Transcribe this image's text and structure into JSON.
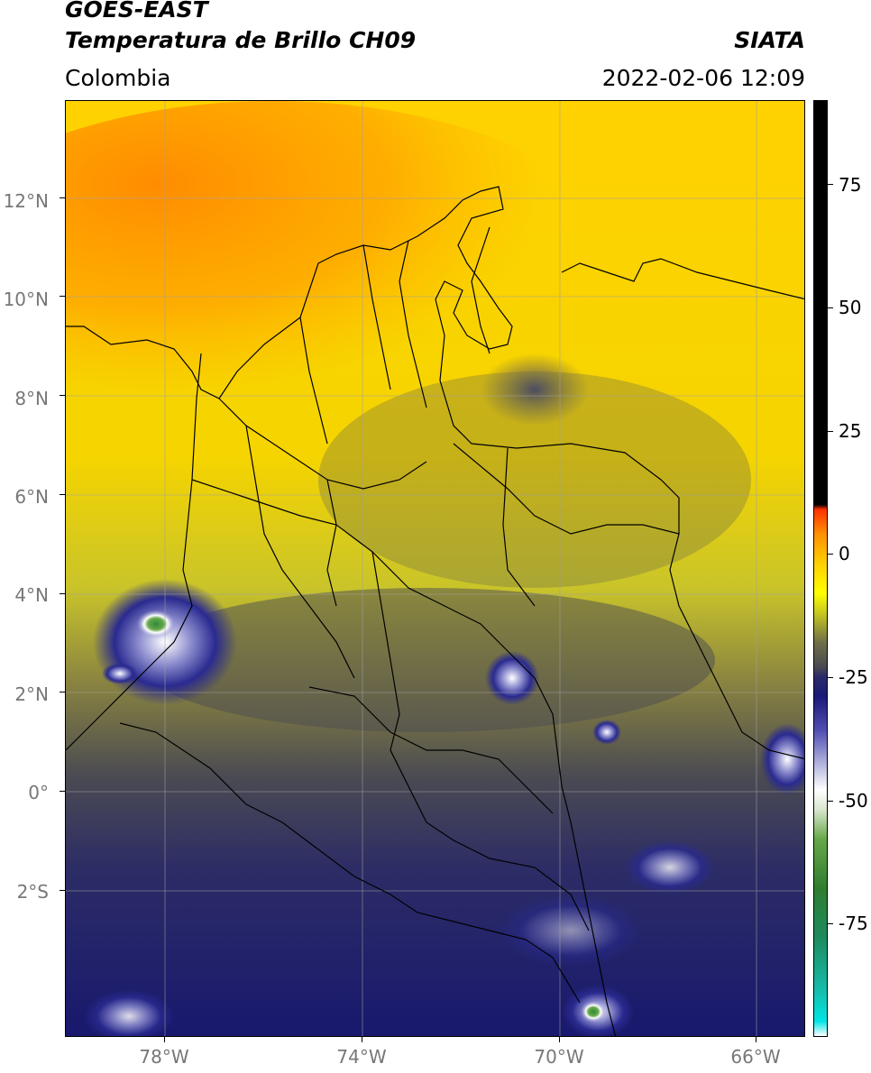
{
  "header": {
    "satellite": "GOES-EAST",
    "product": "Temperatura de Brillo CH09",
    "organization": "SIATA",
    "region": "Colombia",
    "timestamp": "2022-02-06 12:09"
  },
  "map": {
    "lat_range": [
      -5.2,
      14
    ],
    "lon_range": [
      -80,
      -65
    ],
    "lat_ticks": [
      "12°N",
      "10°N",
      "8°N",
      "6°N",
      "4°N",
      "2°N",
      "0°",
      "2°S"
    ],
    "lon_ticks": [
      "78°W",
      "74°W",
      "70°W",
      "66°W"
    ],
    "gridlines": true
  },
  "colorbar": {
    "range": [
      -100,
      90
    ],
    "ticks": [
      "75",
      "50",
      "25",
      "0",
      "-25",
      "-50",
      "-75"
    ],
    "stops": [
      {
        "v": -100,
        "c": "#ffffff"
      },
      {
        "v": -97,
        "c": "#00e5e5"
      },
      {
        "v": -90,
        "c": "#17b9a6"
      },
      {
        "v": -80,
        "c": "#1f8a5f"
      },
      {
        "v": -70,
        "c": "#2f7d2f"
      },
      {
        "v": -60,
        "c": "#66a84a"
      },
      {
        "v": -54,
        "c": "#d9e6cf"
      },
      {
        "v": -50,
        "c": "#ffffff"
      },
      {
        "v": -45,
        "c": "#b8b8e0"
      },
      {
        "v": -38,
        "c": "#5050b4"
      },
      {
        "v": -31,
        "c": "#1a1a78"
      },
      {
        "v": -27,
        "c": "#2a2a6a"
      },
      {
        "v": -25,
        "c": "#4a4a50"
      },
      {
        "v": -20,
        "c": "#707048"
      },
      {
        "v": -14,
        "c": "#c8c820"
      },
      {
        "v": -10,
        "c": "#ffff00"
      },
      {
        "v": -4,
        "c": "#ffd000"
      },
      {
        "v": 2,
        "c": "#ff9000"
      },
      {
        "v": 7,
        "c": "#ff3000"
      },
      {
        "v": 8,
        "c": "#000000"
      },
      {
        "v": 90,
        "c": "#000000"
      }
    ]
  }
}
